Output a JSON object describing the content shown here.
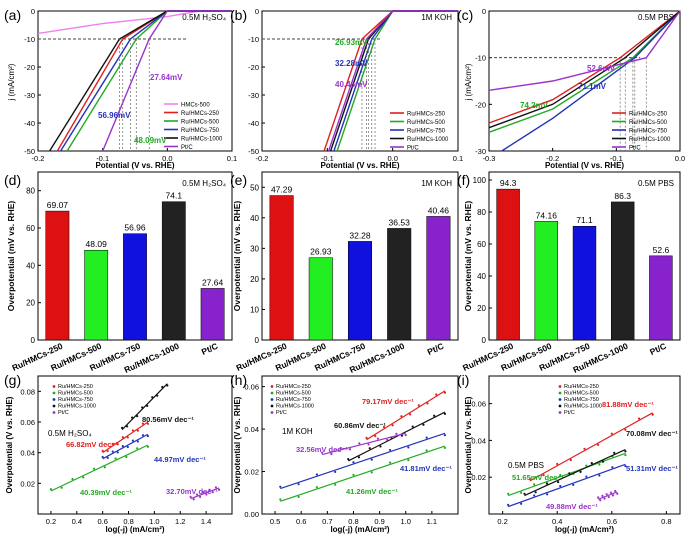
{
  "chart_data": [
    {
      "id": "a",
      "panel_label": "(a)",
      "type": "line",
      "annotation": "0.5M H₂SO₄",
      "xlabel": "Potential (V vs. RHE)",
      "ylabel": "j (mA/cm²)",
      "xlim": [
        -0.2,
        0.1
      ],
      "ylim": [
        -50,
        0
      ],
      "xticks": [
        "-0.2",
        "-0.1",
        "0.0",
        "0.1"
      ],
      "yticks": [
        "0",
        "-10",
        "-20",
        "-30",
        "-40",
        "-50"
      ],
      "legend": [
        "HMCs-500",
        "Ru/HMCs-250",
        "Ru/HMCs-500",
        "Ru/HMCs-750",
        "Ru/HMCs-1000",
        "Pt/C"
      ],
      "colors": [
        "#ee82ee",
        "#e02020",
        "#22aa22",
        "#2233bb",
        "#111111",
        "#9933cc"
      ],
      "series": [
        {
          "name": "HMCs-500",
          "x": [
            -0.2,
            -0.1,
            0.0,
            0.05
          ],
          "y": [
            -8,
            -4.5,
            -2,
            0
          ]
        },
        {
          "name": "Ru/HMCs-250",
          "x": [
            -0.17,
            -0.069,
            0.0
          ],
          "y": [
            -50,
            -10,
            0
          ]
        },
        {
          "name": "Ru/HMCs-500",
          "x": [
            -0.155,
            -0.048,
            0.0
          ],
          "y": [
            -50,
            -10,
            0
          ]
        },
        {
          "name": "Ru/HMCs-750",
          "x": [
            -0.165,
            -0.057,
            0.0
          ],
          "y": [
            -50,
            -10,
            0
          ]
        },
        {
          "name": "Ru/HMCs-1000",
          "x": [
            -0.182,
            -0.074,
            0.0
          ],
          "y": [
            -50,
            -10,
            0
          ]
        },
        {
          "name": "Pt/C",
          "x": [
            -0.1,
            -0.028,
            0.0
          ],
          "y": [
            -50,
            -10,
            0
          ]
        }
      ],
      "labels": [
        "27.64mV",
        "56.96mV",
        "48.09mV"
      ]
    },
    {
      "id": "b",
      "panel_label": "(b)",
      "type": "line",
      "annotation": "1M KOH",
      "xlabel": "Potential (V vs. RHE)",
      "ylabel": "",
      "xlim": [
        -0.2,
        0.1
      ],
      "ylim": [
        -50,
        0
      ],
      "xticks": [
        "-0.2",
        "-0.1",
        "0.0",
        "0.1"
      ],
      "yticks": [
        "0",
        "-10",
        "-20",
        "-30",
        "-40",
        "-50"
      ],
      "legend": [
        "Ru/HMCs-250",
        "Ru/HMCs-500",
        "Ru/HMCs-750",
        "Ru/HMCs-1000",
        "Pt/C"
      ],
      "colors": [
        "#e02020",
        "#22aa22",
        "#2233bb",
        "#111111",
        "#9933cc"
      ],
      "series": [
        {
          "name": "Ru/HMCs-250",
          "x": [
            -0.105,
            -0.047,
            0.0
          ],
          "y": [
            -50,
            -10,
            0
          ]
        },
        {
          "name": "Ru/HMCs-500",
          "x": [
            -0.085,
            -0.027,
            0.0
          ],
          "y": [
            -50,
            -10,
            0
          ]
        },
        {
          "name": "Ru/HMCs-750",
          "x": [
            -0.09,
            -0.032,
            0.0
          ],
          "y": [
            -50,
            -10,
            0
          ]
        },
        {
          "name": "Ru/HMCs-1000",
          "x": [
            -0.095,
            -0.037,
            0.0
          ],
          "y": [
            -50,
            -10,
            0
          ]
        },
        {
          "name": "Pt/C",
          "x": [
            -0.098,
            -0.04,
            0.0
          ],
          "y": [
            -50,
            -10,
            0
          ]
        }
      ],
      "labels": [
        "26.93mV",
        "32.28mV",
        "40.46mV"
      ]
    },
    {
      "id": "c",
      "panel_label": "(c)",
      "type": "line",
      "annotation": "0.5M PBS",
      "xlabel": "Potential (V vs. RHE)",
      "ylabel": "j (mA/cm²)",
      "xlim": [
        -0.3,
        0.0
      ],
      "ylim": [
        -30,
        0
      ],
      "xticks": [
        "-0.3",
        "-0.2",
        "-0.1",
        "0.0"
      ],
      "yticks": [
        "0",
        "-10",
        "-20",
        "-30"
      ],
      "legend": [
        "Ru/HMCs-250",
        "Ru/HMCs-500",
        "Ru/HMCs-750",
        "Ru/HMCs-1000",
        "Pt/C"
      ],
      "colors": [
        "#e02020",
        "#22aa22",
        "#2233bb",
        "#111111",
        "#9933cc"
      ],
      "series": [
        {
          "name": "Ru/HMCs-250",
          "x": [
            -0.3,
            -0.2,
            -0.094,
            0.0
          ],
          "y": [
            -24,
            -19,
            -10,
            0
          ]
        },
        {
          "name": "Ru/HMCs-500",
          "x": [
            -0.3,
            -0.2,
            -0.074,
            0.0
          ],
          "y": [
            -26,
            -21,
            -10,
            0
          ]
        },
        {
          "name": "Ru/HMCs-750",
          "x": [
            -0.28,
            -0.2,
            -0.071,
            0.0
          ],
          "y": [
            -30,
            -23,
            -10,
            0
          ]
        },
        {
          "name": "Ru/HMCs-1000",
          "x": [
            -0.3,
            -0.2,
            -0.086,
            0.0
          ],
          "y": [
            -25,
            -20,
            -10,
            0
          ]
        },
        {
          "name": "Pt/C",
          "x": [
            -0.3,
            -0.2,
            -0.053,
            0.0
          ],
          "y": [
            -17,
            -15,
            -10,
            0
          ]
        }
      ],
      "labels": [
        "52.6mV",
        "71.1mV",
        "74.2mV"
      ]
    },
    {
      "id": "d",
      "panel_label": "(d)",
      "type": "bar",
      "annotation": "0.5M H₂SO₄",
      "ylabel": "Overpotential (mV vs. RHE)",
      "categories": [
        "Ru/HMCs-250",
        "Ru/HMCs-500",
        "Ru/HMCs-750",
        "Ru/HMCs-1000",
        "Pt/C"
      ],
      "values": [
        69.07,
        48.09,
        56.96,
        74.1,
        27.64
      ],
      "value_labels": [
        "69.07",
        "48.09",
        "56.96",
        "74.1",
        "27.64"
      ],
      "ylim": [
        0,
        90
      ],
      "yticks": [
        "0",
        "20",
        "40",
        "60",
        "80"
      ]
    },
    {
      "id": "e",
      "panel_label": "(e)",
      "type": "bar",
      "annotation": "1M KOH",
      "ylabel": "Overpotential (mV vs. RHE)",
      "categories": [
        "Ru/HMCs-250",
        "Ru/HMCs-500",
        "Ru/HMCs-750",
        "Ru/HMCs-1000",
        "Pt/C"
      ],
      "values": [
        47.29,
        26.93,
        32.28,
        36.53,
        40.46
      ],
      "value_labels": [
        "47.29",
        "26.93",
        "32.28",
        "36.53",
        "40.46"
      ],
      "ylim": [
        0,
        55
      ],
      "yticks": [
        "0",
        "10",
        "20",
        "30",
        "40",
        "50"
      ]
    },
    {
      "id": "f",
      "panel_label": "(f)",
      "type": "bar",
      "annotation": "0.5M PBS",
      "ylabel": "Overpotential (mV vs. RHE)",
      "categories": [
        "Ru/HMCs-250",
        "Ru/HMCs-500",
        "Ru/HMCs-750",
        "Ru/HMCs-1000",
        "Pt/C"
      ],
      "values": [
        94.3,
        74.16,
        71.1,
        86.3,
        52.6
      ],
      "value_labels": [
        "94.3",
        "74.16",
        "71.1",
        "86.3",
        "52.6"
      ],
      "ylim": [
        0,
        105
      ],
      "yticks": [
        "0",
        "20",
        "40",
        "60",
        "80",
        "100"
      ]
    },
    {
      "id": "g",
      "panel_label": "(g)",
      "type": "scatter",
      "annotation": "0.5M H₂SO₄",
      "xlabel": "log(-j) (mA/cm²)",
      "ylabel": "Overpotential (V vs. RHE)",
      "xlim": [
        0.1,
        1.6
      ],
      "ylim": [
        0.0,
        0.09
      ],
      "xticks": [
        "0.2",
        "0.4",
        "0.6",
        "0.8",
        "1.0",
        "1.2",
        "1.4"
      ],
      "yticks": [
        "0.02",
        "0.04",
        "0.06",
        "0.08"
      ],
      "legend": [
        "Ru/HMCs-250",
        "Ru/HMCs-500",
        "Ru/HMCs-750",
        "Ru/HMCs-1000",
        "Pt/C"
      ],
      "colors": [
        "#e02020",
        "#22aa22",
        "#2233bb",
        "#111111",
        "#9933cc"
      ],
      "series": [
        {
          "name": "Ru/HMCs-250",
          "x0": 0.6,
          "x1": 0.95,
          "y0": 0.04,
          "y1": 0.06
        },
        {
          "name": "Ru/HMCs-500",
          "x0": 0.2,
          "x1": 0.95,
          "y0": 0.015,
          "y1": 0.045
        },
        {
          "name": "Ru/HMCs-750",
          "x0": 0.6,
          "x1": 0.95,
          "y0": 0.036,
          "y1": 0.052
        },
        {
          "name": "Ru/HMCs-1000",
          "x0": 0.75,
          "x1": 1.1,
          "y0": 0.055,
          "y1": 0.085
        },
        {
          "name": "Pt/C",
          "x0": 1.28,
          "x1": 1.5,
          "y0": 0.01,
          "y1": 0.017
        }
      ],
      "slope_labels": [
        "80.56mV dec⁻¹",
        "66.82mV dec⁻¹",
        "44.97mV dec⁻¹",
        "40.39mV dec⁻¹",
        "32.70mV dec⁻¹"
      ]
    },
    {
      "id": "h",
      "panel_label": "(h)",
      "type": "scatter",
      "annotation": "1M KOH",
      "xlabel": "log(-j) (mA/cm²)",
      "ylabel": "Overpotential (V vs. RHE)",
      "xlim": [
        0.45,
        1.2
      ],
      "ylim": [
        0.0,
        0.065
      ],
      "xticks": [
        "0.5",
        "0.6",
        "0.7",
        "0.8",
        "0.9",
        "1.0",
        "1.1"
      ],
      "yticks": [
        "0.00",
        "0.02",
        "0.04",
        "0.06"
      ],
      "legend": [
        "Ru/HMCs-250",
        "Ru/HMCs-500",
        "Ru/HMCs-750",
        "Ru/HMCs-1000",
        "Pt/C"
      ],
      "colors": [
        "#e02020",
        "#22aa22",
        "#2233bb",
        "#111111",
        "#9933cc"
      ],
      "series": [
        {
          "name": "Ru/HMCs-250",
          "x0": 0.85,
          "x1": 1.15,
          "y0": 0.035,
          "y1": 0.058
        },
        {
          "name": "Ru/HMCs-500",
          "x0": 0.52,
          "x1": 1.15,
          "y0": 0.006,
          "y1": 0.032
        },
        {
          "name": "Ru/HMCs-750",
          "x0": 0.52,
          "x1": 1.15,
          "y0": 0.012,
          "y1": 0.038
        },
        {
          "name": "Ru/HMCs-1000",
          "x0": 0.78,
          "x1": 1.15,
          "y0": 0.025,
          "y1": 0.048
        },
        {
          "name": "Pt/C",
          "x0": 0.68,
          "x1": 1.0,
          "y0": 0.028,
          "y1": 0.038
        }
      ],
      "slope_labels": [
        "79.17mV dec⁻¹",
        "60.86mV dec⁻¹",
        "32.56mV dec⁻¹",
        "41.81mV dec⁻¹",
        "41.26mV dec⁻¹"
      ]
    },
    {
      "id": "i",
      "panel_label": "(i)",
      "type": "scatter",
      "annotation": "0.5M PBS",
      "xlabel": "log(-j) (mA/cm²)",
      "ylabel": "Overpotential (V vs. RHE)",
      "xlim": [
        0.15,
        0.85
      ],
      "ylim": [
        0.0,
        0.075
      ],
      "xticks": [
        "0.2",
        "0.4",
        "0.6",
        "0.8"
      ],
      "yticks": [
        "0.02",
        "0.04",
        "0.06"
      ],
      "legend": [
        "Ru/HMCs-250",
        "Ru/HMCs-500",
        "Ru/HMCs-750",
        "Ru/HMCs-1000",
        "Pt/C"
      ],
      "colors": [
        "#e02020",
        "#22aa22",
        "#2233bb",
        "#111111",
        "#9933cc"
      ],
      "series": [
        {
          "name": "Ru/HMCs-250",
          "x0": 0.3,
          "x1": 0.75,
          "y0": 0.018,
          "y1": 0.055
        },
        {
          "name": "Ru/HMCs-500",
          "x0": 0.22,
          "x1": 0.65,
          "y0": 0.01,
          "y1": 0.033
        },
        {
          "name": "Ru/HMCs-750",
          "x0": 0.22,
          "x1": 0.65,
          "y0": 0.004,
          "y1": 0.027
        },
        {
          "name": "Ru/HMCs-1000",
          "x0": 0.28,
          "x1": 0.65,
          "y0": 0.01,
          "y1": 0.035
        },
        {
          "name": "Pt/C",
          "x0": 0.55,
          "x1": 0.62,
          "y0": 0.008,
          "y1": 0.012
        }
      ],
      "slope_labels": [
        "81.88mV dec⁻¹",
        "70.08mV dec⁻¹",
        "51.65mV dec⁻¹",
        "51.31mV dec⁻¹",
        "49.88mV dec⁻¹"
      ]
    }
  ]
}
